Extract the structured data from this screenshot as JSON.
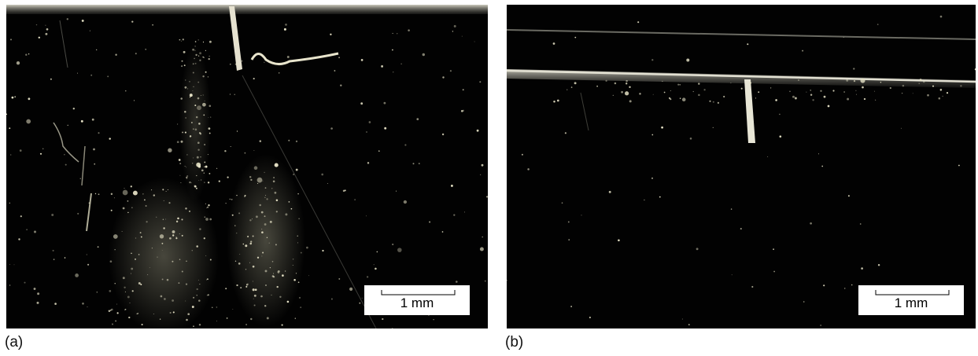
{
  "panels": [
    {
      "label": "(a)",
      "scale_bar": "1 mm"
    },
    {
      "label": "(b)",
      "scale_bar": "1 mm"
    }
  ],
  "colors": {
    "background": "#020202",
    "sparkle": "#e8e4c8",
    "scale_box": "#ffffff"
  }
}
